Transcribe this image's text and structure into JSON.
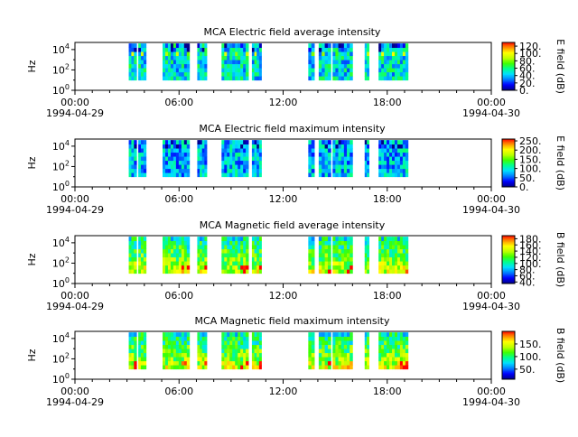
{
  "chart_data": [
    {
      "type": "heatmap",
      "title": "MCA  Electric field average intensity",
      "ylabel": "Hz",
      "yscale": "log",
      "ylim": [
        1,
        50000
      ],
      "ytick_labels": [
        "10^0",
        "10^2",
        "10^4"
      ],
      "ytick_values": [
        1,
        100,
        10000
      ],
      "xlim_hours": [
        0,
        24
      ],
      "xtick_labels": [
        "00:00",
        "06:00",
        "12:00",
        "18:00",
        "00:00"
      ],
      "xtick_hours": [
        0,
        6,
        12,
        18,
        24
      ],
      "xdate_labels": [
        "1994-04-29",
        "1994-04-30"
      ],
      "colorbar_label": "E field (dB)",
      "colorbar_range": [
        0,
        130
      ],
      "colorbar_ticks": [
        0,
        20,
        40,
        60,
        80,
        100,
        120
      ],
      "colorbar_tick_labels": [
        "0.",
        "20.",
        "40.",
        "60.",
        "80.",
        "100.",
        "120."
      ],
      "mean_level": 0.35
    },
    {
      "type": "heatmap",
      "title": "MCA  Electric field maximum intensity",
      "ylabel": "Hz",
      "yscale": "log",
      "ylim": [
        1,
        50000
      ],
      "ytick_labels": [
        "10^0",
        "10^2",
        "10^4"
      ],
      "ytick_values": [
        1,
        100,
        10000
      ],
      "xlim_hours": [
        0,
        24
      ],
      "xtick_labels": [
        "00:00",
        "06:00",
        "12:00",
        "18:00",
        "00:00"
      ],
      "xtick_hours": [
        0,
        6,
        12,
        18,
        24
      ],
      "xdate_labels": [
        "1994-04-29",
        "1994-04-30"
      ],
      "colorbar_label": "E field (dB)",
      "colorbar_range": [
        0,
        260
      ],
      "colorbar_ticks": [
        0,
        50,
        100,
        150,
        200,
        250
      ],
      "colorbar_tick_labels": [
        "0.",
        "50.",
        "100.",
        "150.",
        "200.",
        "250."
      ],
      "mean_level": 0.3
    },
    {
      "type": "heatmap",
      "title": "MCA  Magnetic field average intensity",
      "ylabel": "Hz",
      "yscale": "log",
      "ylim": [
        1,
        50000
      ],
      "ytick_labels": [
        "10^0",
        "10^2",
        "10^4"
      ],
      "ytick_values": [
        1,
        100,
        10000
      ],
      "xlim_hours": [
        0,
        24
      ],
      "xtick_labels": [
        "00:00",
        "06:00",
        "12:00",
        "18:00",
        "00:00"
      ],
      "xtick_hours": [
        0,
        6,
        12,
        18,
        24
      ],
      "xdate_labels": [
        "1994-04-29",
        "1994-04-30"
      ],
      "colorbar_label": "B field (dB)",
      "colorbar_range": [
        35,
        190
      ],
      "colorbar_ticks": [
        40,
        60,
        80,
        100,
        120,
        140,
        160,
        180
      ],
      "colorbar_tick_labels": [
        "40.",
        "60.",
        "80.",
        "100.",
        "120.",
        "140.",
        "160.",
        "180."
      ],
      "mean_level": 0.42
    },
    {
      "type": "heatmap",
      "title": "MCA  Magnetic field maximum intensity",
      "ylabel": "Hz",
      "yscale": "log",
      "ylim": [
        1,
        50000
      ],
      "ytick_labels": [
        "10^0",
        "10^2",
        "10^4"
      ],
      "ytick_values": [
        1,
        100,
        10000
      ],
      "xlim_hours": [
        0,
        24
      ],
      "xtick_labels": [
        "00:00",
        "06:00",
        "12:00",
        "18:00",
        "00:00"
      ],
      "xtick_hours": [
        0,
        6,
        12,
        18,
        24
      ],
      "xdate_labels": [
        "1994-04-29",
        "1994-04-30"
      ],
      "colorbar_label": "B field (dB)",
      "colorbar_range": [
        10,
        200
      ],
      "colorbar_ticks": [
        50,
        100,
        150
      ],
      "colorbar_tick_labels": [
        "50.",
        "100.",
        "150."
      ],
      "mean_level": 0.42
    }
  ],
  "data_segments_hours": [
    [
      3.1,
      3.55
    ],
    [
      3.65,
      4.1
    ],
    [
      5.05,
      6.6
    ],
    [
      7.05,
      7.6
    ],
    [
      8.45,
      10.0
    ],
    [
      10.2,
      10.75
    ],
    [
      13.45,
      13.8
    ],
    [
      14.05,
      14.75
    ],
    [
      14.85,
      16.0
    ],
    [
      16.7,
      16.95
    ],
    [
      17.5,
      19.2
    ]
  ],
  "colors": {
    "background": "#ffffff",
    "axis": "#000000",
    "colormap": [
      "#00008b",
      "#0000ff",
      "#0080ff",
      "#00e0ff",
      "#00ff90",
      "#40ff00",
      "#c0ff00",
      "#ffff00",
      "#ff9000",
      "#ff0000"
    ]
  }
}
